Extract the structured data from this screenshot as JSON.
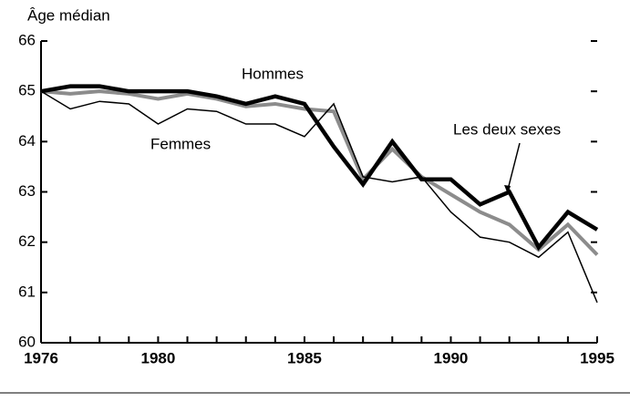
{
  "chart_data": {
    "type": "line",
    "ylabel": "Âge médian",
    "x": [
      1976,
      1977,
      1978,
      1979,
      1980,
      1981,
      1982,
      1983,
      1984,
      1985,
      1986,
      1987,
      1988,
      1989,
      1990,
      1991,
      1992,
      1993,
      1994,
      1995
    ],
    "series": [
      {
        "name": "Hommes",
        "color": "#000000",
        "width": 4.5,
        "values": [
          65.0,
          65.1,
          65.1,
          65.0,
          65.0,
          65.0,
          64.9,
          64.75,
          64.9,
          64.75,
          63.9,
          63.15,
          64.0,
          63.25,
          63.25,
          62.75,
          63.0,
          61.9,
          62.6,
          62.25
        ]
      },
      {
        "name": "Femmes",
        "color": "#000000",
        "width": 1.5,
        "values": [
          65.0,
          64.65,
          64.8,
          64.75,
          64.35,
          64.65,
          64.6,
          64.35,
          64.35,
          64.1,
          64.75,
          63.3,
          63.2,
          63.3,
          62.6,
          62.1,
          62.0,
          61.7,
          62.2,
          60.8
        ]
      },
      {
        "name": "Les deux sexes",
        "color": "#8c8c8c",
        "width": 4,
        "values": [
          65.0,
          64.95,
          65.0,
          64.95,
          64.85,
          64.95,
          64.85,
          64.7,
          64.75,
          64.65,
          64.6,
          63.25,
          63.85,
          63.3,
          62.95,
          62.6,
          62.35,
          61.85,
          62.35,
          61.75
        ]
      }
    ],
    "xlim": [
      1976,
      1995
    ],
    "xticks": [
      1976,
      1980,
      1985,
      1990,
      1995
    ],
    "ylim": [
      60,
      66
    ],
    "yticks": [
      60,
      61,
      62,
      63,
      64,
      65,
      66
    ]
  }
}
